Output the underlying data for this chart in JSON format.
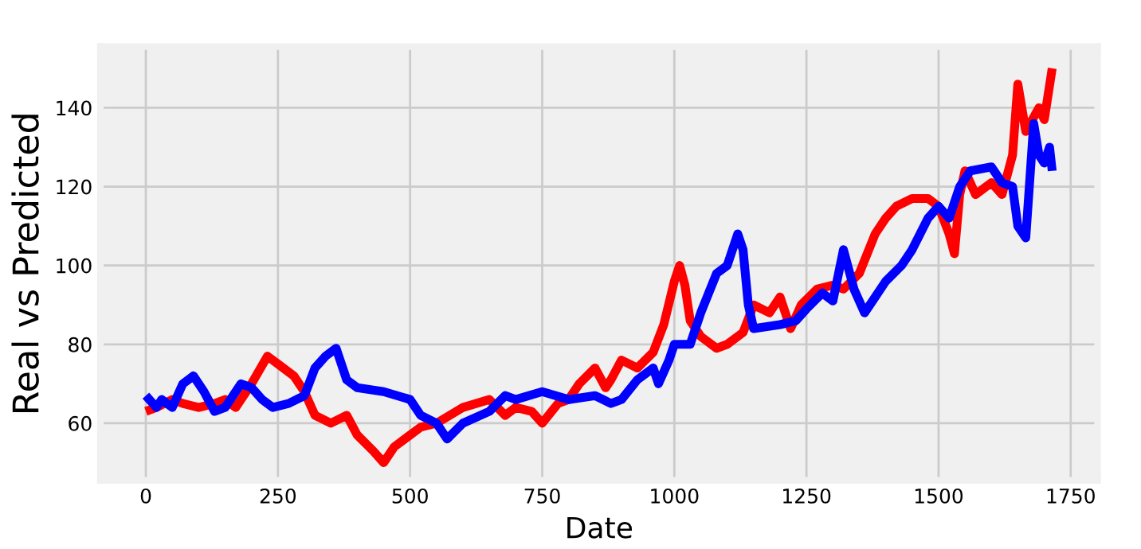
{
  "chart_data": {
    "type": "line",
    "xlabel": "Date",
    "ylabel": "Real vs Predicted",
    "series": [
      {
        "color": "#ff0000",
        "x": [
          0,
          20,
          50,
          70,
          100,
          130,
          150,
          170,
          200,
          230,
          250,
          280,
          300,
          320,
          350,
          380,
          400,
          430,
          450,
          470,
          500,
          520,
          550,
          600,
          650,
          680,
          700,
          730,
          750,
          780,
          800,
          820,
          850,
          870,
          880,
          900,
          930,
          960,
          980,
          1000,
          1010,
          1020,
          1030,
          1050,
          1080,
          1100,
          1130,
          1150,
          1180,
          1200,
          1220,
          1240,
          1270,
          1300,
          1320,
          1350,
          1380,
          1400,
          1420,
          1450,
          1480,
          1500,
          1520,
          1530,
          1540,
          1550,
          1570,
          1600,
          1620,
          1640,
          1650,
          1665,
          1690,
          1700,
          1715
        ],
        "values": [
          63,
          64,
          66,
          65,
          64,
          65,
          66,
          64,
          70,
          77,
          75,
          72,
          68,
          62,
          60,
          62,
          57,
          53,
          50,
          54,
          57,
          59,
          60,
          64,
          66,
          62,
          64,
          63,
          60,
          65,
          66,
          70,
          74,
          69,
          71,
          76,
          74,
          78,
          85,
          96,
          100,
          95,
          86,
          82,
          79,
          80,
          83,
          90,
          88,
          92,
          84,
          90,
          94,
          95,
          94,
          98,
          108,
          112,
          115,
          117,
          117,
          115,
          108,
          103,
          118,
          124,
          118,
          121,
          118,
          128,
          146,
          134,
          140,
          137,
          150
        ]
      },
      {
        "color": "#0000ff",
        "x": [
          0,
          20,
          30,
          50,
          70,
          90,
          110,
          130,
          150,
          180,
          200,
          220,
          240,
          270,
          300,
          320,
          340,
          360,
          380,
          400,
          450,
          500,
          520,
          550,
          570,
          600,
          650,
          680,
          700,
          750,
          800,
          850,
          880,
          900,
          930,
          960,
          970,
          990,
          1000,
          1030,
          1050,
          1080,
          1100,
          1120,
          1130,
          1140,
          1150,
          1200,
          1230,
          1250,
          1280,
          1300,
          1320,
          1340,
          1360,
          1380,
          1400,
          1430,
          1450,
          1480,
          1500,
          1520,
          1540,
          1560,
          1600,
          1620,
          1640,
          1650,
          1665,
          1680,
          1690,
          1700,
          1710,
          1715
        ],
        "values": [
          67,
          64,
          66,
          64,
          70,
          72,
          68,
          63,
          64,
          70,
          69,
          66,
          64,
          65,
          67,
          74,
          77,
          79,
          71,
          69,
          68,
          66,
          62,
          60,
          56,
          60,
          63,
          67,
          66,
          68,
          66,
          67,
          65,
          66,
          71,
          74,
          70,
          76,
          80,
          80,
          88,
          98,
          100,
          108,
          104,
          90,
          84,
          85,
          86,
          89,
          93,
          91,
          104,
          94,
          88,
          92,
          96,
          100,
          104,
          112,
          115,
          112,
          120,
          124,
          125,
          121,
          120,
          110,
          107,
          136,
          128,
          126,
          130,
          124
        ]
      }
    ],
    "xlim": [
      -86,
      1801
    ],
    "ylim": [
      45.5,
      155.5
    ],
    "xticks": [
      0,
      250,
      500,
      750,
      1000,
      1250,
      1500,
      1750
    ],
    "yticks": [
      60,
      80,
      100,
      120,
      140
    ],
    "grid": true,
    "line_style": "solid"
  }
}
